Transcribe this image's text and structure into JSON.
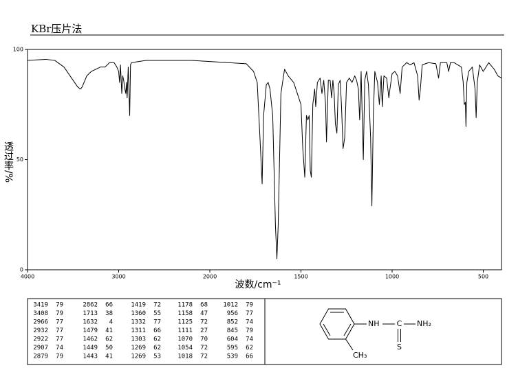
{
  "header": {
    "title": "KBr压片法"
  },
  "chart_data": {
    "type": "line",
    "color": "#000000",
    "x_label": "波数/cm⁻¹",
    "y_label": "透过率/%",
    "xlim": [
      4000,
      400
    ],
    "ylim": [
      0,
      100
    ],
    "xticks": [
      4000,
      3000,
      2000,
      1500,
      1000,
      500
    ],
    "yticks": [
      0,
      50,
      100
    ],
    "x": [
      4000,
      3800,
      3700,
      3600,
      3500,
      3450,
      3419,
      3400,
      3350,
      3300,
      3200,
      3150,
      3100,
      3050,
      3020,
      3000,
      2990,
      2980,
      2966,
      2955,
      2945,
      2932,
      2922,
      2915,
      2907,
      2895,
      2879,
      2870,
      2860,
      2700,
      2500,
      2200,
      2000,
      1800,
      1760,
      1740,
      1725,
      1713,
      1705,
      1690,
      1680,
      1670,
      1655,
      1640,
      1632,
      1625,
      1610,
      1590,
      1570,
      1540,
      1520,
      1500,
      1490,
      1479,
      1470,
      1462,
      1455,
      1449,
      1443,
      1435,
      1425,
      1419,
      1410,
      1395,
      1385,
      1375,
      1365,
      1360,
      1350,
      1340,
      1332,
      1325,
      1318,
      1311,
      1303,
      1295,
      1285,
      1278,
      1269,
      1260,
      1250,
      1235,
      1220,
      1205,
      1195,
      1185,
      1178,
      1170,
      1158,
      1150,
      1140,
      1130,
      1125,
      1118,
      1111,
      1103,
      1095,
      1080,
      1070,
      1060,
      1054,
      1045,
      1030,
      1018,
      1012,
      1000,
      985,
      970,
      956,
      945,
      920,
      900,
      880,
      860,
      852,
      845,
      835,
      800,
      760,
      745,
      735,
      700,
      690,
      680,
      660,
      640,
      620,
      610,
      604,
      598,
      595,
      590,
      580,
      560,
      545,
      539,
      533,
      520,
      500,
      470,
      440,
      420,
      400
    ],
    "series": [
      {
        "name": "spectrum",
        "values": [
          95,
          95.5,
          95,
          92,
          86,
          83,
          82,
          83,
          88,
          90,
          92,
          92,
          94,
          94,
          92,
          90,
          85,
          93,
          80,
          88,
          86,
          82,
          80,
          85,
          78,
          92,
          70,
          93,
          94,
          95,
          95,
          95,
          94.5,
          93.5,
          90,
          85,
          60,
          39,
          70,
          84,
          85,
          82,
          70,
          20,
          5,
          20,
          80,
          91,
          88,
          85,
          80,
          75,
          55,
          42,
          70,
          68,
          70,
          45,
          42,
          75,
          82,
          74,
          85,
          87,
          80,
          86,
          75,
          58,
          86,
          86,
          78,
          86,
          80,
          66,
          62,
          84,
          86,
          75,
          55,
          60,
          85,
          87,
          85,
          88,
          86,
          82,
          68,
          90,
          50,
          86,
          90,
          84,
          74,
          60,
          29,
          70,
          90,
          85,
          75,
          88,
          74,
          88,
          87,
          78,
          82,
          89,
          90,
          88,
          80,
          92,
          94,
          93,
          94,
          88,
          77,
          82,
          93,
          94,
          93.5,
          87,
          94,
          94,
          90,
          94,
          94,
          93,
          92,
          85,
          75,
          76,
          65,
          85,
          90,
          92,
          82,
          69,
          85,
          93,
          90,
          94,
          91,
          88,
          87
        ]
      }
    ]
  },
  "peak_table": {
    "columns": [
      [
        [
          3419,
          79
        ],
        [
          3408,
          79
        ],
        [
          2966,
          77
        ],
        [
          2932,
          77
        ],
        [
          2922,
          77
        ],
        [
          2907,
          74
        ],
        [
          2879,
          79
        ]
      ],
      [
        [
          2862,
          66
        ],
        [
          1713,
          38
        ],
        [
          1632,
          4
        ],
        [
          1479,
          41
        ],
        [
          1462,
          62
        ],
        [
          1449,
          50
        ],
        [
          1443,
          41
        ]
      ],
      [
        [
          1419,
          72
        ],
        [
          1360,
          55
        ],
        [
          1332,
          77
        ],
        [
          1311,
          66
        ],
        [
          1303,
          62
        ],
        [
          1269,
          62
        ],
        [
          1269,
          53
        ]
      ],
      [
        [
          1178,
          68
        ],
        [
          1158,
          47
        ],
        [
          1125,
          72
        ],
        [
          1111,
          27
        ],
        [
          1070,
          70
        ],
        [
          1054,
          72
        ],
        [
          1018,
          72
        ]
      ],
      [
        [
          1012,
          79
        ],
        [
          956,
          77
        ],
        [
          852,
          74
        ],
        [
          845,
          79
        ],
        [
          604,
          74
        ],
        [
          595,
          62
        ],
        [
          539,
          66
        ]
      ]
    ]
  },
  "structure": {
    "amine": "NH",
    "carbon": "C",
    "amide": "NH₂",
    "sulfur": "S",
    "methyl": "CH₃"
  }
}
